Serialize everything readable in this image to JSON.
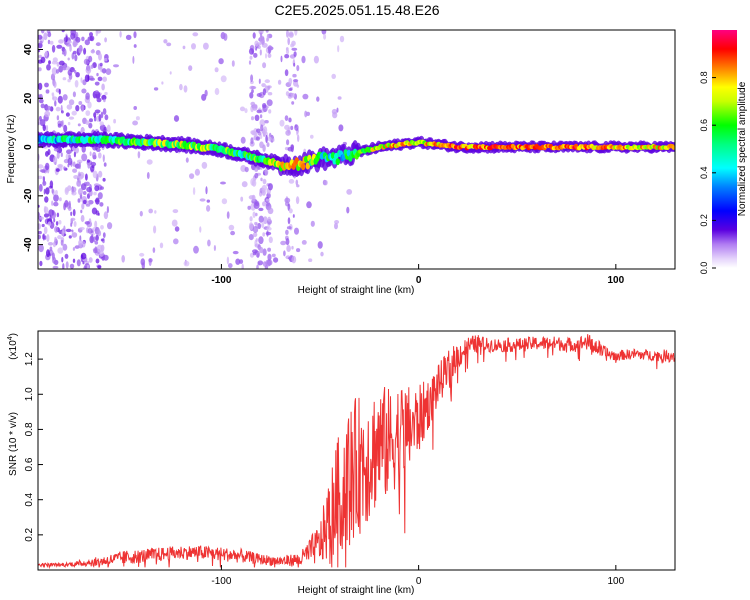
{
  "title": "C2E5.2025.051.15.48.E26",
  "chart_data": [
    {
      "type": "heatmap",
      "xlabel": "Height of straight line (km)",
      "ylabel": "Frequency (Hz)",
      "xlim": [
        -193,
        130
      ],
      "ylim": [
        -50,
        48
      ],
      "xticks": [
        -100,
        0,
        100
      ],
      "xtick_labels": [
        "-100",
        "0",
        "100"
      ],
      "yticks": [
        -40,
        -20,
        0,
        20,
        40
      ],
      "ytick_labels": [
        "-40",
        "-20",
        "0",
        "20",
        "40"
      ],
      "colorbar": {
        "label": "Normalized spectral amplitude",
        "range": [
          0,
          1
        ],
        "ticks": [
          "0.0",
          "0.2",
          "0.4",
          "0.6",
          "0.8"
        ],
        "colors": [
          "#ffffff",
          "#c9a6f5",
          "#5a00e0",
          "#0000ff",
          "#00ffff",
          "#00ff00",
          "#ffff00",
          "#ff8000",
          "#ff0000",
          "#ff0080"
        ]
      },
      "ridge": {
        "x": [
          -193,
          -180,
          -160,
          -140,
          -120,
          -100,
          -90,
          -80,
          -70,
          -60,
          -50,
          -40,
          -30,
          -20,
          -10,
          0,
          10,
          20,
          40,
          60,
          80,
          100,
          130
        ],
        "frequency": [
          3,
          3,
          3,
          2,
          1,
          -1,
          -3,
          -5,
          -7,
          -7,
          -5,
          -4,
          -2,
          0,
          1,
          2,
          1,
          0,
          0,
          0,
          0,
          0,
          0
        ],
        "amplitude": [
          0.45,
          0.5,
          0.55,
          0.6,
          0.65,
          0.6,
          0.55,
          0.6,
          0.7,
          0.75,
          0.55,
          0.5,
          0.55,
          0.7,
          0.8,
          0.75,
          0.8,
          0.85,
          0.85,
          0.85,
          0.85,
          0.8,
          0.75
        ]
      },
      "grid": false
    },
    {
      "type": "line",
      "xlabel": "Height of straight line (km)",
      "ylabel": "SNR (10 * v/v)",
      "scale_label": "(x10",
      "scale_exp": "4",
      "scale_close": ")",
      "xlim": [
        -193,
        130
      ],
      "ylim": [
        0,
        1.36
      ],
      "xticks": [
        -100,
        0,
        100
      ],
      "xtick_labels": [
        "-100",
        "0",
        "100"
      ],
      "yticks": [
        0.2,
        0.4,
        0.6,
        0.8,
        1.0,
        1.2
      ],
      "ytick_labels": [
        "0.2",
        "0.4",
        "0.6",
        "0.8",
        "1.0",
        "1.2"
      ],
      "color": "#ee3333",
      "series": [
        {
          "x": [
            -193,
            -180,
            -170,
            -160,
            -150,
            -140,
            -130,
            -120,
            -110,
            -100,
            -90,
            -80,
            -70,
            -60,
            -50,
            -45,
            -40,
            -35,
            -30,
            -25,
            -20,
            -15,
            -10,
            -5,
            0,
            5,
            10,
            15,
            20,
            25,
            30,
            35,
            40,
            50,
            60,
            70,
            80,
            85,
            90,
            95,
            100,
            110,
            120,
            130
          ],
          "y": [
            0.03,
            0.03,
            0.04,
            0.05,
            0.07,
            0.08,
            0.09,
            0.1,
            0.1,
            0.09,
            0.08,
            0.06,
            0.05,
            0.06,
            0.15,
            0.3,
            0.45,
            0.55,
            0.6,
            0.65,
            0.72,
            0.72,
            0.78,
            0.8,
            0.85,
            0.95,
            1.05,
            1.15,
            1.22,
            1.27,
            1.29,
            1.28,
            1.28,
            1.28,
            1.29,
            1.29,
            1.28,
            1.3,
            1.27,
            1.23,
            1.22,
            1.23,
            1.22,
            1.22
          ],
          "noise": [
            0.01,
            0.01,
            0.02,
            0.03,
            0.04,
            0.04,
            0.04,
            0.04,
            0.04,
            0.04,
            0.04,
            0.03,
            0.03,
            0.04,
            0.12,
            0.25,
            0.35,
            0.4,
            0.4,
            0.38,
            0.35,
            0.32,
            0.3,
            0.25,
            0.2,
            0.15,
            0.12,
            0.1,
            0.08,
            0.06,
            0.05,
            0.04,
            0.04,
            0.04,
            0.04,
            0.04,
            0.04,
            0.05,
            0.05,
            0.04,
            0.03,
            0.03,
            0.03,
            0.04
          ]
        }
      ],
      "grid": false
    }
  ]
}
